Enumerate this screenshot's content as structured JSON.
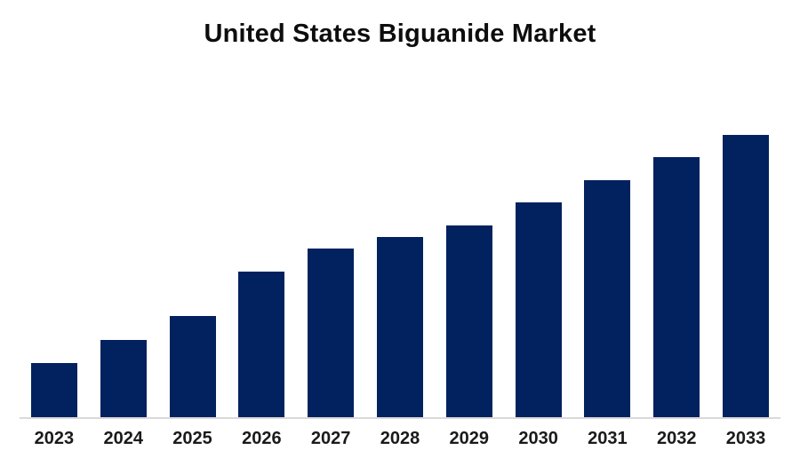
{
  "title": "United States Biguanide Market",
  "colors": {
    "bar": "#02215F",
    "axis_line": "#D9D9D9",
    "title_text": "#0D0D0D",
    "label_text": "#1A1A1A",
    "background": "#FFFFFF"
  },
  "chart_data": {
    "type": "bar",
    "title": "United States Biguanide Market",
    "categories": [
      "2023",
      "2024",
      "2025",
      "2026",
      "2027",
      "2028",
      "2029",
      "2030",
      "2031",
      "2032",
      "2033"
    ],
    "values": [
      19.4,
      27.6,
      36.1,
      51.7,
      59.9,
      64.0,
      68.0,
      76.2,
      84.0,
      92.2,
      100.0
    ],
    "value_unit": "relative bar height, % of tallest (2033) bar; no value axis shown in chart",
    "xlabel": "",
    "ylabel": "",
    "ylim": [
      0,
      100
    ],
    "grid": false,
    "legend": false,
    "y_axis_visible": false,
    "x_axis_line_visible": true,
    "bar_color": "#02215F"
  }
}
